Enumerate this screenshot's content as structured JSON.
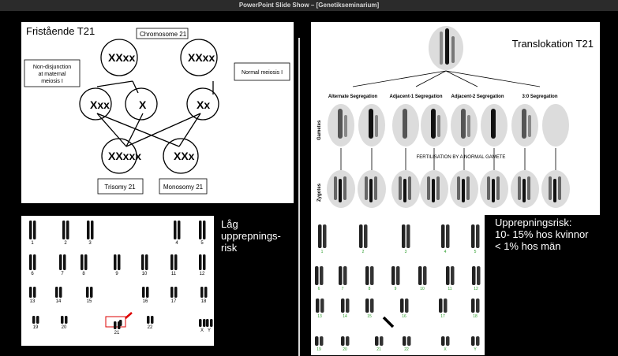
{
  "window": {
    "title": "PowerPoint Slide Show – [Genetikseminarium]"
  },
  "slide": {
    "left_title": "Fristående T21",
    "right_title": "Translokation T21",
    "left_caption_lines": [
      "Låg",
      "upprepnings-",
      "risk"
    ],
    "right_caption_lines": [
      "Upprepningsrisk:",
      "10- 15% hos kvinnor",
      "< 1% hos män"
    ]
  },
  "diagram": {
    "chromosome_label": "Chromosome 21",
    "nondisjunction_label": [
      "Non-disjunction",
      "at maternal",
      "meiosis I"
    ],
    "normal_label": "Normal meiosis I",
    "trisomy_label": "Trisomy 21",
    "monosomy_label": "Monosomy 21"
  },
  "translocation": {
    "segregations": [
      "Alternate Segregation",
      "Adjacent-1 Segregation",
      "Adjacent-2 Segregation",
      "3:0 Segregation"
    ],
    "row_gametes": "Gametes",
    "row_zygotes": "Zygotes",
    "fertilisation": "FERTILISATION BY A NORMAL GAMETE"
  },
  "karyotype_left": {
    "labels": [
      "1",
      "2",
      "3",
      "4",
      "5",
      "6",
      "7",
      "8",
      "9",
      "10",
      "11",
      "12",
      "13",
      "14",
      "15",
      "16",
      "17",
      "18",
      "19",
      "20",
      "21",
      "22",
      "X",
      "Y"
    ]
  },
  "karyotype_right": {
    "labels": [
      "1",
      "2",
      "3",
      "4",
      "5",
      "6",
      "7",
      "8",
      "9",
      "10",
      "11",
      "12",
      "13",
      "14",
      "15",
      "16",
      "17",
      "18",
      "19",
      "20",
      "21",
      "22",
      "X",
      "Y"
    ]
  }
}
